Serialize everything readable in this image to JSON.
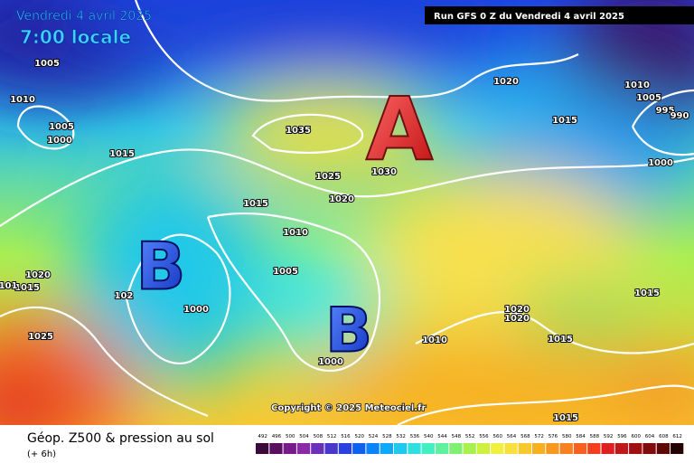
{
  "header": {
    "date": "Vendredi 4 avril 2025",
    "time": "7:00 locale",
    "run": "Run GFS 0 Z du Vendredi 4 avril 2025"
  },
  "pressure_centers": [
    {
      "label": "A"
    },
    {
      "label": "B"
    },
    {
      "label": "B"
    }
  ],
  "isobar_labels": [
    "1005",
    "1010",
    "1005",
    "1000",
    "1015",
    "1035",
    "1025",
    "1030",
    "1020",
    "1015",
    "1010",
    "1005",
    "1000",
    "1020",
    "1015",
    "101",
    "102",
    "1025",
    "1020",
    "1015",
    "1010",
    "1005",
    "995",
    "990",
    "1000",
    "1020",
    "1020",
    "1015",
    "1015",
    "1010",
    "1015",
    "1000"
  ],
  "copyright": "Copyright © 2025 Meteociel.fr",
  "footer": {
    "title": "Géop. Z500 & pression au sol",
    "subtitle": "(+ 6h)"
  },
  "legend": {
    "ticks": [
      492,
      496,
      500,
      504,
      508,
      512,
      516,
      520,
      524,
      528,
      532,
      536,
      540,
      544,
      548,
      552,
      556,
      560,
      564,
      568,
      572,
      576,
      580,
      584,
      588,
      592,
      596,
      600,
      604,
      608,
      612
    ],
    "colors": [
      "#3a0a3a",
      "#5a1060",
      "#7a1a8a",
      "#8a2aa8",
      "#6a30b8",
      "#4a38c8",
      "#2a40e0",
      "#1060f0",
      "#0a84f8",
      "#10a8f8",
      "#20c8f0",
      "#30e0e0",
      "#40f0c0",
      "#60f0a0",
      "#80f070",
      "#a8f050",
      "#d0f040",
      "#f0f040",
      "#f8e040",
      "#f8c830",
      "#f8b020",
      "#f89820",
      "#f88020",
      "#f86020",
      "#f04020",
      "#e02020",
      "#c01818",
      "#a01010",
      "#800c0c",
      "#600808",
      "#200404"
    ]
  }
}
